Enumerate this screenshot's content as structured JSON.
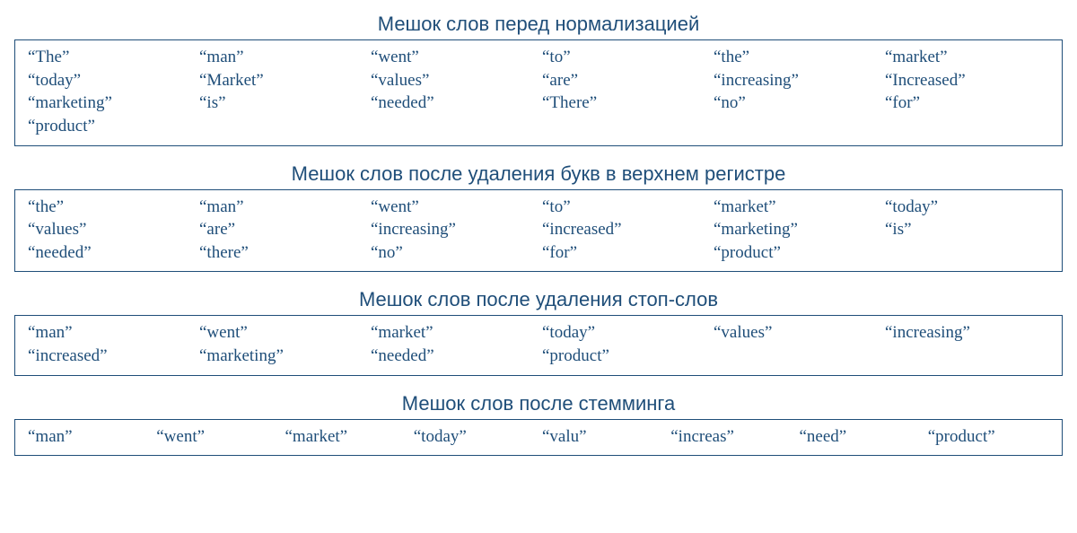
{
  "colors": {
    "text": "#1f4e79",
    "border": "#1f4e79",
    "background": "#ffffff"
  },
  "typography": {
    "title_fontsize": 22,
    "word_fontsize": 19,
    "title_family": "Segoe UI, Arial, sans-serif",
    "word_family": "Georgia, Times New Roman, serif"
  },
  "sections": [
    {
      "title": "Мешок слов перед нормализацией",
      "columns": 6,
      "words": [
        "“The”",
        "“man”",
        "“went”",
        "“to”",
        "“the”",
        "“market”",
        "“today”",
        "“Market”",
        "“values”",
        "“are”",
        "“increasing”",
        "“Increased”",
        "“marketing”",
        "“is”",
        "“needed”",
        "“There”",
        "“no”",
        "“for”",
        "“product”"
      ]
    },
    {
      "title": "Мешок слов после удаления букв в верхнем регистре",
      "columns": 6,
      "words": [
        "“the”",
        "“man”",
        "“went”",
        "“to”",
        "“market”",
        "“today”",
        "“values”",
        "“are”",
        "“increasing”",
        "“increased”",
        "“marketing”",
        "“is”",
        "“needed”",
        "“there”",
        "“no”",
        "“for”",
        "“product”"
      ]
    },
    {
      "title": "Мешок слов после удаления стоп-слов",
      "columns": 6,
      "words": [
        "“man”",
        "“went”",
        "“market”",
        "“today”",
        "“values”",
        "“increasing”",
        "“increased”",
        "“marketing”",
        "“needed”",
        "“product”"
      ]
    },
    {
      "title": "Мешок слов после стемминга",
      "columns": 8,
      "words": [
        "“man”",
        "“went”",
        "“market”",
        "“today”",
        "“valu”",
        "“increas”",
        "“need”",
        "“product”"
      ]
    }
  ]
}
